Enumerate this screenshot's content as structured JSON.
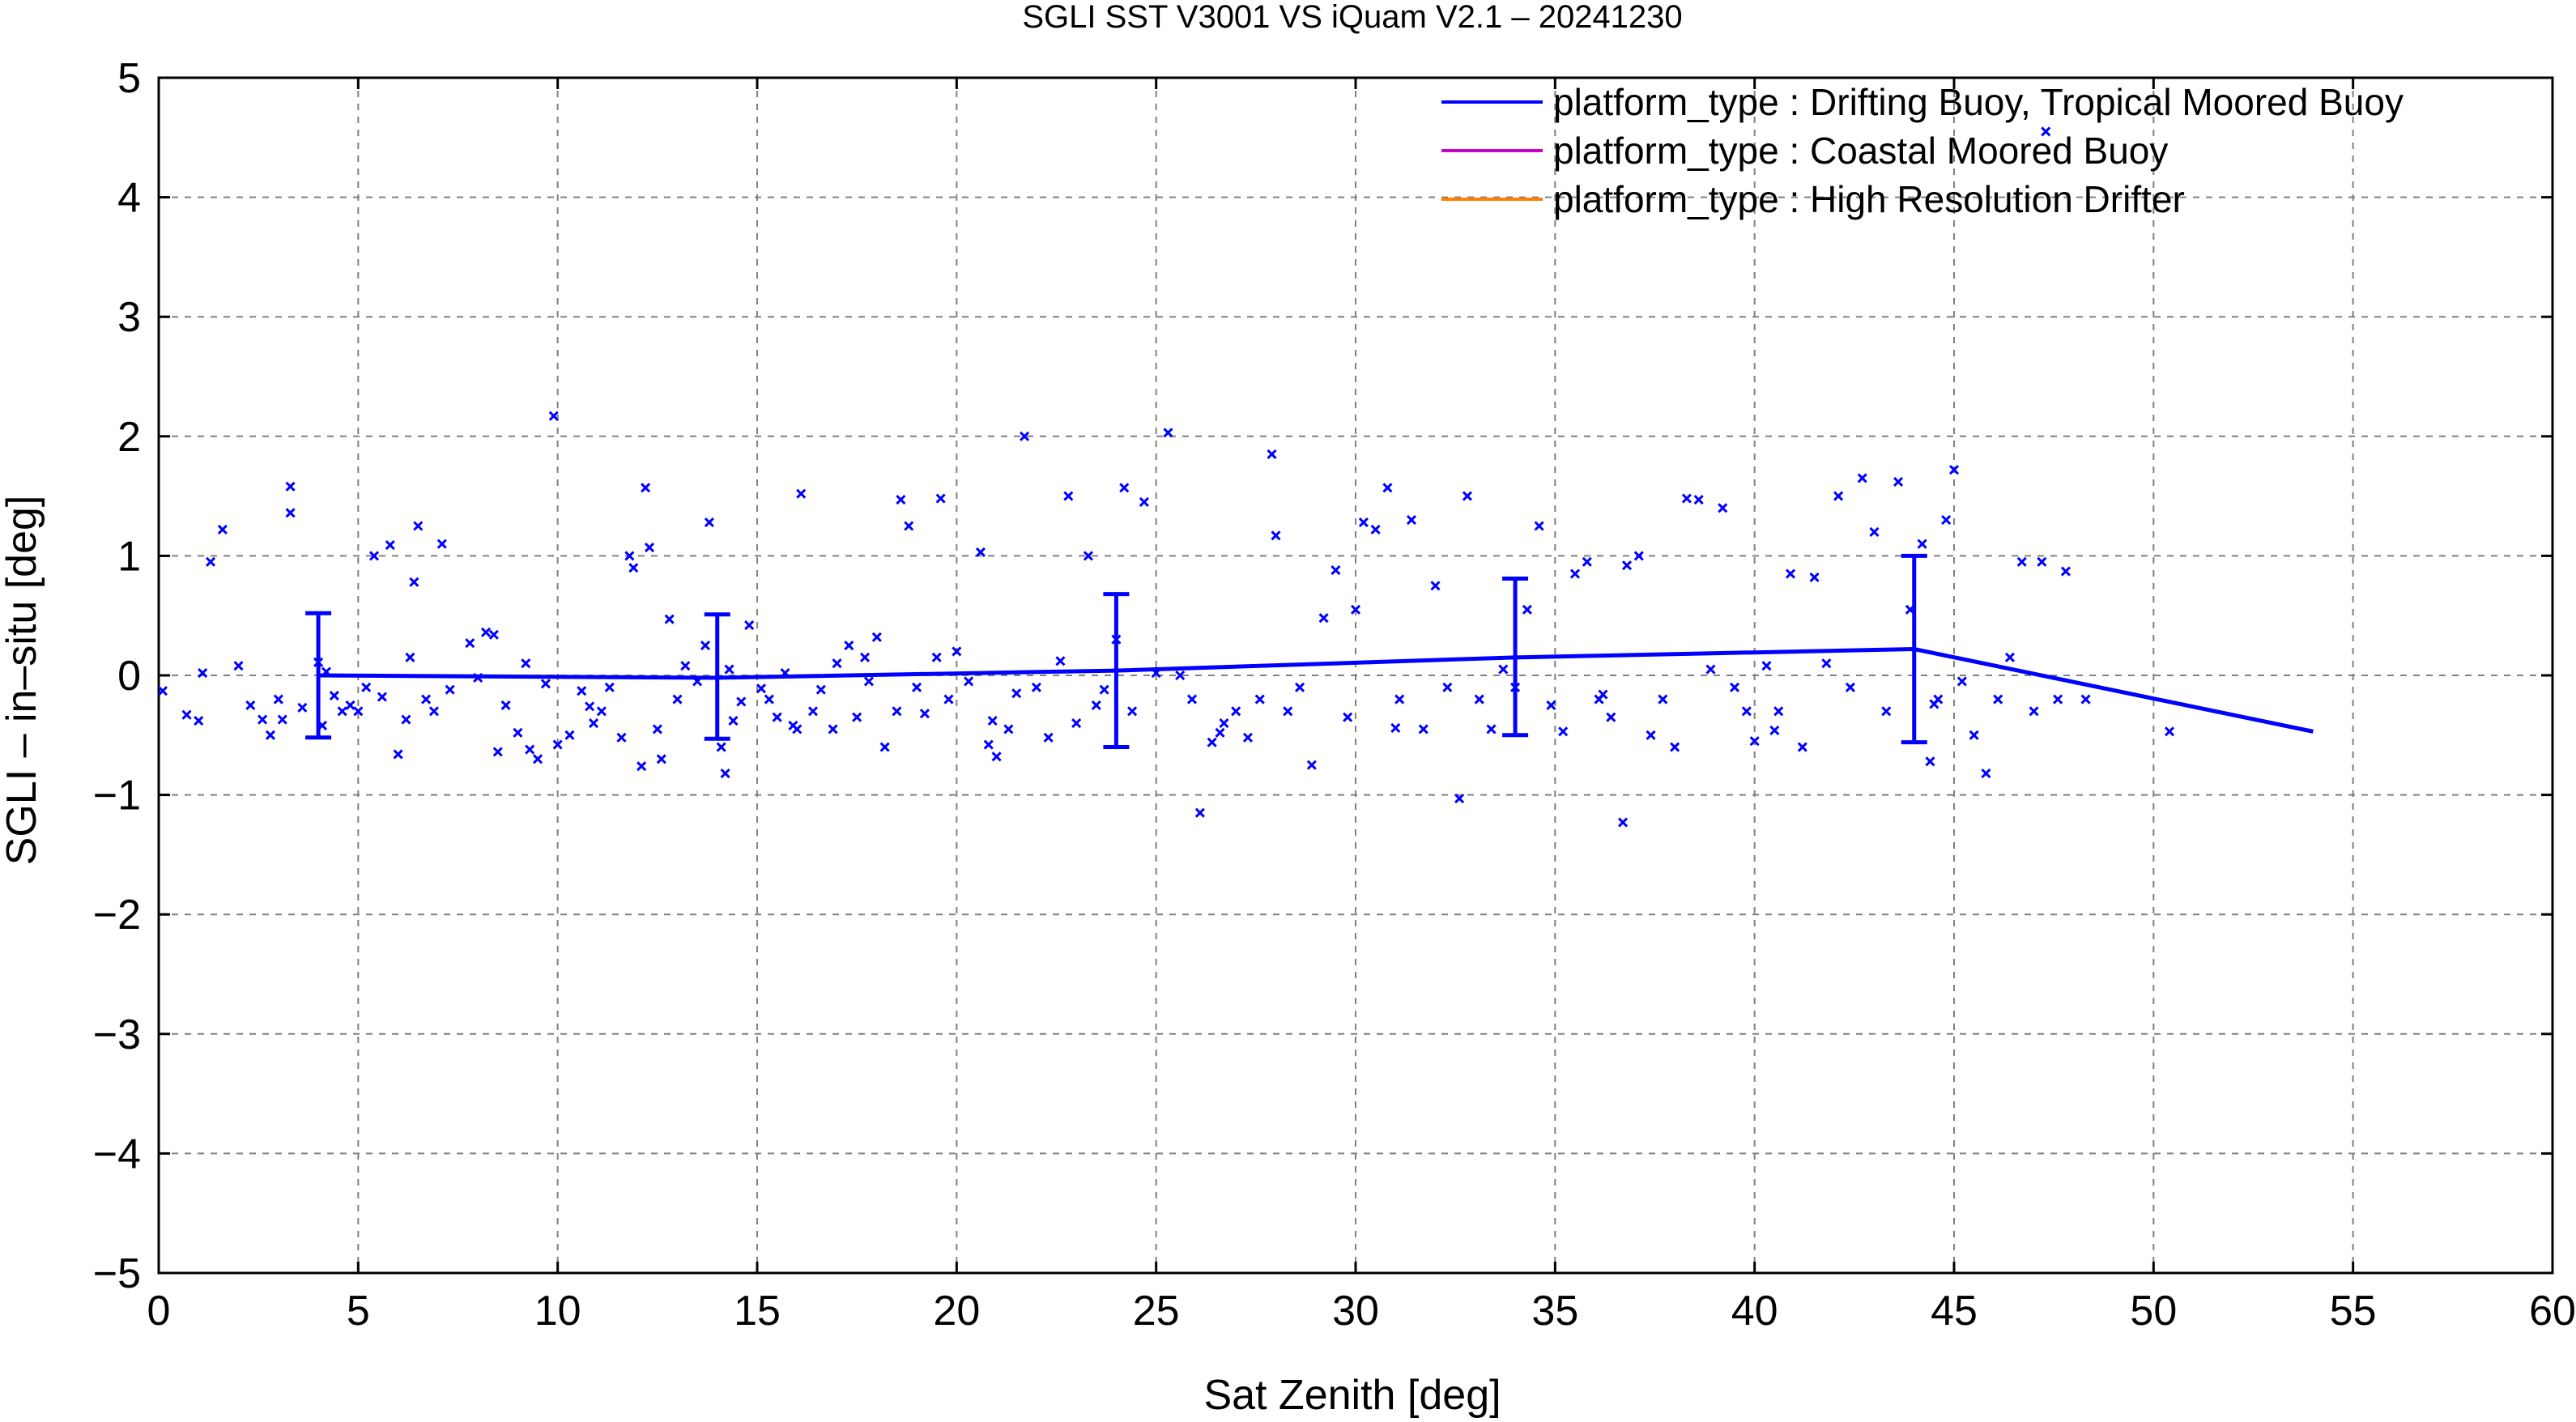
{
  "chart_data": {
    "type": "scatter",
    "title": "SGLI SST V3001 VS iQuam V2.1  – 20241230",
    "xlabel": "Sat Zenith [deg]",
    "ylabel": "SGLI – in–situ [deg]",
    "xlim": [
      0,
      60
    ],
    "ylim": [
      -5,
      5
    ],
    "xticks": [
      "0",
      "5",
      "10",
      "15",
      "20",
      "25",
      "30",
      "35",
      "40",
      "45",
      "50",
      "55",
      "60"
    ],
    "yticks": [
      "5",
      "4",
      "3",
      "2",
      "1",
      "0",
      "−1",
      "−2",
      "−3",
      "−4",
      "−5"
    ],
    "grid": true,
    "legend_position": "top-right",
    "colors": {
      "series1": "#0000ff",
      "series2": "#cc00cc",
      "series3": "#ff8000"
    },
    "legend": [
      {
        "label": "platform_type : Drifting Buoy, Tropical Moored Buoy",
        "color": "#0000ff"
      },
      {
        "label": "platform_type : Coastal Moored Buoy",
        "color": "#cc00cc"
      },
      {
        "label": "platform_type : High Resolution Drifter",
        "color": "#ff8000"
      }
    ],
    "mean_line": {
      "x": [
        4,
        14,
        24,
        34,
        44,
        54
      ],
      "y": [
        0.0,
        -0.02,
        0.04,
        0.15,
        0.22,
        -0.47
      ],
      "errorbars": [
        {
          "x": 4,
          "low": -0.52,
          "high": 0.52
        },
        {
          "x": 14,
          "low": -0.53,
          "high": 0.51
        },
        {
          "x": 24,
          "low": -0.6,
          "high": 0.68
        },
        {
          "x": 34,
          "low": -0.5,
          "high": 0.81
        },
        {
          "x": 44,
          "low": -0.56,
          "high": 1.0
        }
      ]
    },
    "points": [
      [
        0.1,
        -0.13
      ],
      [
        0.7,
        -0.33
      ],
      [
        1.0,
        -0.38
      ],
      [
        1.1,
        0.02
      ],
      [
        1.3,
        0.95
      ],
      [
        1.6,
        1.22
      ],
      [
        2.0,
        0.08
      ],
      [
        2.3,
        -0.25
      ],
      [
        2.6,
        -0.37
      ],
      [
        2.8,
        -0.5
      ],
      [
        3.0,
        -0.2
      ],
      [
        3.1,
        -0.37
      ],
      [
        3.3,
        1.58
      ],
      [
        3.3,
        1.36
      ],
      [
        3.6,
        -0.27
      ],
      [
        4.0,
        0.11
      ],
      [
        4.1,
        -0.42
      ],
      [
        4.2,
        0.03
      ],
      [
        4.4,
        -0.17
      ],
      [
        4.6,
        -0.3
      ],
      [
        4.8,
        -0.25
      ],
      [
        5.2,
        -0.1
      ],
      [
        5.4,
        1.0
      ],
      [
        5.6,
        -0.18
      ],
      [
        5.8,
        1.09
      ],
      [
        6.0,
        -0.66
      ],
      [
        6.2,
        -0.37
      ],
      [
        6.3,
        0.15
      ],
      [
        6.4,
        0.78
      ],
      [
        6.5,
        1.25
      ],
      [
        6.7,
        -0.2
      ],
      [
        6.9,
        -0.3
      ],
      [
        7.1,
        1.1
      ],
      [
        7.3,
        -0.12
      ],
      [
        7.8,
        0.27
      ],
      [
        8.0,
        -0.02
      ],
      [
        8.2,
        0.36
      ],
      [
        8.4,
        0.34
      ],
      [
        8.5,
        -0.64
      ],
      [
        8.7,
        -0.25
      ],
      [
        9.0,
        -0.48
      ],
      [
        9.2,
        0.1
      ],
      [
        9.3,
        -0.62
      ],
      [
        9.5,
        -0.7
      ],
      [
        9.7,
        -0.07
      ],
      [
        9.9,
        2.17
      ],
      [
        10.0,
        -0.58
      ],
      [
        10.3,
        -0.5
      ],
      [
        10.6,
        -0.13
      ],
      [
        10.9,
        -0.4
      ],
      [
        11.1,
        -0.3
      ],
      [
        11.3,
        -0.1
      ],
      [
        11.6,
        -0.52
      ],
      [
        11.8,
        1.0
      ],
      [
        11.9,
        0.9
      ],
      [
        12.1,
        -0.76
      ],
      [
        12.2,
        1.57
      ],
      [
        12.3,
        1.07
      ],
      [
        12.5,
        -0.45
      ],
      [
        12.6,
        -0.7
      ],
      [
        12.8,
        0.47
      ],
      [
        13.0,
        -0.2
      ],
      [
        13.2,
        0.08
      ],
      [
        13.5,
        -0.05
      ],
      [
        13.7,
        0.25
      ],
      [
        13.8,
        1.28
      ],
      [
        14.1,
        -0.6
      ],
      [
        14.2,
        -0.82
      ],
      [
        14.3,
        0.05
      ],
      [
        14.4,
        -0.38
      ],
      [
        14.6,
        -0.22
      ],
      [
        14.8,
        0.42
      ],
      [
        15.1,
        -0.11
      ],
      [
        15.3,
        -0.2
      ],
      [
        15.5,
        -0.35
      ],
      [
        15.7,
        0.02
      ],
      [
        16.0,
        -0.45
      ],
      [
        16.1,
        1.52
      ],
      [
        16.4,
        -0.3
      ],
      [
        16.6,
        -0.12
      ],
      [
        16.9,
        -0.45
      ],
      [
        17.0,
        0.1
      ],
      [
        17.3,
        0.25
      ],
      [
        17.5,
        -0.35
      ],
      [
        17.7,
        0.15
      ],
      [
        17.8,
        -0.05
      ],
      [
        18.0,
        0.32
      ],
      [
        18.2,
        -0.6
      ],
      [
        18.5,
        -0.3
      ],
      [
        18.6,
        1.47
      ],
      [
        18.8,
        1.25
      ],
      [
        19.0,
        -0.1
      ],
      [
        19.2,
        -0.32
      ],
      [
        19.5,
        0.15
      ],
      [
        19.6,
        1.48
      ],
      [
        19.8,
        -0.2
      ],
      [
        20.0,
        0.2
      ],
      [
        20.3,
        -0.05
      ],
      [
        20.6,
        1.03
      ],
      [
        20.8,
        -0.58
      ],
      [
        21.0,
        -0.68
      ],
      [
        21.3,
        -0.45
      ],
      [
        21.5,
        -0.15
      ],
      [
        21.7,
        2.0
      ],
      [
        22.0,
        -0.1
      ],
      [
        22.3,
        -0.52
      ],
      [
        22.6,
        0.12
      ],
      [
        22.8,
        1.5
      ],
      [
        23.0,
        -0.4
      ],
      [
        23.3,
        1.0
      ],
      [
        23.5,
        -0.25
      ],
      [
        23.7,
        -0.12
      ],
      [
        24.0,
        0.3
      ],
      [
        24.2,
        1.57
      ],
      [
        24.4,
        -0.3
      ],
      [
        24.7,
        1.45
      ],
      [
        25.0,
        0.02
      ],
      [
        25.3,
        2.03
      ],
      [
        25.6,
        0.0
      ],
      [
        25.9,
        -0.2
      ],
      [
        26.1,
        -1.15
      ],
      [
        26.4,
        -0.56
      ],
      [
        26.7,
        -0.4
      ],
      [
        27.0,
        -0.3
      ],
      [
        27.3,
        -0.52
      ],
      [
        27.6,
        -0.2
      ],
      [
        27.9,
        1.85
      ],
      [
        28.0,
        1.17
      ],
      [
        28.3,
        -0.3
      ],
      [
        28.6,
        -0.1
      ],
      [
        28.9,
        -0.75
      ],
      [
        29.2,
        0.48
      ],
      [
        29.5,
        0.88
      ],
      [
        29.8,
        -0.35
      ],
      [
        30.0,
        0.55
      ],
      [
        30.2,
        1.28
      ],
      [
        30.5,
        1.22
      ],
      [
        30.8,
        1.57
      ],
      [
        31.1,
        -0.2
      ],
      [
        31.4,
        1.3
      ],
      [
        31.7,
        -0.45
      ],
      [
        32.0,
        0.75
      ],
      [
        32.3,
        -0.1
      ],
      [
        32.6,
        -1.03
      ],
      [
        32.8,
        1.5
      ],
      [
        33.1,
        -0.2
      ],
      [
        33.4,
        -0.45
      ],
      [
        33.7,
        0.05
      ],
      [
        34.0,
        -0.1
      ],
      [
        34.3,
        0.55
      ],
      [
        34.6,
        1.25
      ],
      [
        34.9,
        -0.25
      ],
      [
        35.2,
        -0.47
      ],
      [
        35.5,
        0.85
      ],
      [
        35.8,
        0.95
      ],
      [
        36.1,
        -0.2
      ],
      [
        36.4,
        -0.35
      ],
      [
        36.7,
        -1.23
      ],
      [
        36.8,
        0.92
      ],
      [
        37.1,
        1.0
      ],
      [
        37.4,
        -0.5
      ],
      [
        37.7,
        -0.2
      ],
      [
        38.0,
        -0.6
      ],
      [
        38.3,
        1.48
      ],
      [
        38.6,
        1.47
      ],
      [
        38.9,
        0.05
      ],
      [
        39.2,
        1.4
      ],
      [
        39.5,
        -0.1
      ],
      [
        39.8,
        -0.3
      ],
      [
        40.0,
        -0.55
      ],
      [
        40.3,
        0.08
      ],
      [
        40.6,
        -0.3
      ],
      [
        40.9,
        0.85
      ],
      [
        41.2,
        -0.6
      ],
      [
        41.5,
        0.82
      ],
      [
        41.8,
        0.1
      ],
      [
        42.1,
        1.5
      ],
      [
        42.4,
        -0.1
      ],
      [
        42.7,
        1.65
      ],
      [
        43.0,
        1.2
      ],
      [
        43.3,
        -0.3
      ],
      [
        43.6,
        1.62
      ],
      [
        43.9,
        0.55
      ],
      [
        44.2,
        1.1
      ],
      [
        44.4,
        -0.72
      ],
      [
        44.6,
        -0.2
      ],
      [
        44.8,
        1.3
      ],
      [
        45.0,
        1.72
      ],
      [
        45.2,
        -0.05
      ],
      [
        45.5,
        -0.5
      ],
      [
        45.8,
        -0.82
      ],
      [
        46.1,
        -0.2
      ],
      [
        46.4,
        0.15
      ],
      [
        46.7,
        0.95
      ],
      [
        47.0,
        -0.3
      ],
      [
        47.2,
        0.95
      ],
      [
        47.3,
        4.55
      ],
      [
        47.6,
        -0.2
      ],
      [
        47.8,
        0.87
      ],
      [
        48.3,
        -0.2
      ],
      [
        50.4,
        -0.47
      ],
      [
        5.0,
        -0.3
      ],
      [
        10.8,
        -0.26
      ],
      [
        15.9,
        -0.42
      ],
      [
        20.9,
        -0.38
      ],
      [
        26.6,
        -0.48
      ],
      [
        31.0,
        -0.44
      ],
      [
        36.2,
        -0.16
      ],
      [
        40.5,
        -0.46
      ],
      [
        44.5,
        -0.24
      ]
    ]
  }
}
